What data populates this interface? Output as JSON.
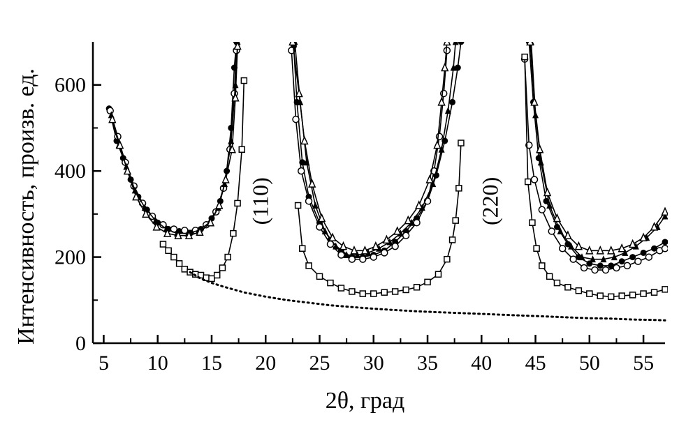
{
  "chart_data": {
    "type": "scatter",
    "title": "",
    "xlabel": "2θ, град",
    "ylabel": "Интенсивность, произв. ед.",
    "xlim": [
      4,
      57
    ],
    "ylim": [
      0,
      700
    ],
    "xticks": [
      "5",
      "10",
      "15",
      "20",
      "25",
      "30",
      "35",
      "40",
      "45",
      "50",
      "55"
    ],
    "yticks": [
      "0",
      "200",
      "400",
      "600"
    ],
    "grid": false,
    "annotations": [
      {
        "text": "(110)",
        "x": 20.2,
        "y": 330
      },
      {
        "text": "(220)",
        "x": 41.5,
        "y": 330
      }
    ],
    "series": [
      {
        "marker": "filled-circle",
        "points": [
          [
            5.5,
            545
          ],
          [
            6.2,
            470
          ],
          [
            6.8,
            430
          ],
          [
            7.5,
            380
          ],
          [
            8.2,
            340
          ],
          [
            9.0,
            310
          ],
          [
            10.0,
            280
          ],
          [
            11.0,
            265
          ],
          [
            12.0,
            260
          ],
          [
            13.0,
            255
          ],
          [
            14.0,
            265
          ],
          [
            15.0,
            290
          ],
          [
            15.8,
            330
          ],
          [
            16.4,
            400
          ],
          [
            16.8,
            500
          ],
          [
            17.1,
            640
          ],
          [
            17.3,
            700
          ],
          [
            22.6,
            690
          ],
          [
            22.9,
            560
          ],
          [
            23.4,
            420
          ],
          [
            24.0,
            340
          ],
          [
            25.0,
            280
          ],
          [
            26.0,
            240
          ],
          [
            27.0,
            215
          ],
          [
            28.0,
            200
          ],
          [
            29.0,
            200
          ],
          [
            30.0,
            205
          ],
          [
            31.0,
            215
          ],
          [
            32.0,
            235
          ],
          [
            33.0,
            260
          ],
          [
            34.0,
            290
          ],
          [
            35.0,
            330
          ],
          [
            35.8,
            390
          ],
          [
            36.6,
            470
          ],
          [
            37.3,
            560
          ],
          [
            37.8,
            640
          ],
          [
            38.1,
            700
          ],
          [
            44.4,
            700
          ],
          [
            44.8,
            560
          ],
          [
            45.3,
            430
          ],
          [
            46.0,
            330
          ],
          [
            47.0,
            270
          ],
          [
            48.0,
            230
          ],
          [
            49.0,
            200
          ],
          [
            50.0,
            185
          ],
          [
            51.0,
            180
          ],
          [
            52.0,
            180
          ],
          [
            53.0,
            190
          ],
          [
            54.0,
            200
          ],
          [
            55.0,
            210
          ],
          [
            56.0,
            220
          ],
          [
            57.0,
            235
          ]
        ]
      },
      {
        "marker": "open-circle",
        "points": [
          [
            5.6,
            540
          ],
          [
            6.3,
            480
          ],
          [
            7.0,
            420
          ],
          [
            7.8,
            365
          ],
          [
            8.6,
            325
          ],
          [
            9.5,
            295
          ],
          [
            10.5,
            275
          ],
          [
            11.5,
            265
          ],
          [
            12.5,
            262
          ],
          [
            13.5,
            262
          ],
          [
            14.5,
            275
          ],
          [
            15.4,
            305
          ],
          [
            16.1,
            360
          ],
          [
            16.7,
            450
          ],
          [
            17.1,
            580
          ],
          [
            17.3,
            680
          ],
          [
            22.4,
            680
          ],
          [
            22.8,
            520
          ],
          [
            23.3,
            400
          ],
          [
            24.0,
            330
          ],
          [
            25.0,
            270
          ],
          [
            26.0,
            230
          ],
          [
            27.0,
            205
          ],
          [
            28.0,
            195
          ],
          [
            29.0,
            195
          ],
          [
            30.0,
            200
          ],
          [
            31.0,
            210
          ],
          [
            32.0,
            225
          ],
          [
            33.0,
            250
          ],
          [
            34.0,
            280
          ],
          [
            35.0,
            330
          ],
          [
            35.6,
            400
          ],
          [
            36.1,
            480
          ],
          [
            36.5,
            580
          ],
          [
            36.8,
            680
          ],
          [
            44.0,
            660
          ],
          [
            44.4,
            460
          ],
          [
            44.9,
            380
          ],
          [
            45.6,
            310
          ],
          [
            46.5,
            260
          ],
          [
            47.5,
            220
          ],
          [
            48.5,
            195
          ],
          [
            49.5,
            175
          ],
          [
            50.5,
            170
          ],
          [
            51.5,
            170
          ],
          [
            52.5,
            175
          ],
          [
            53.5,
            180
          ],
          [
            54.5,
            190
          ],
          [
            55.5,
            200
          ],
          [
            56.5,
            215
          ],
          [
            57.0,
            220
          ]
        ]
      },
      {
        "marker": "filled-triangle",
        "points": [
          [
            5.7,
            530
          ],
          [
            6.4,
            460
          ],
          [
            7.1,
            410
          ],
          [
            7.9,
            355
          ],
          [
            8.8,
            315
          ],
          [
            9.8,
            285
          ],
          [
            10.8,
            265
          ],
          [
            11.8,
            255
          ],
          [
            12.8,
            255
          ],
          [
            13.8,
            262
          ],
          [
            14.8,
            280
          ],
          [
            15.6,
            315
          ],
          [
            16.2,
            370
          ],
          [
            16.8,
            470
          ],
          [
            17.2,
            600
          ],
          [
            17.4,
            700
          ],
          [
            22.7,
            700
          ],
          [
            23.2,
            560
          ],
          [
            23.8,
            420
          ],
          [
            24.6,
            320
          ],
          [
            25.5,
            260
          ],
          [
            26.5,
            225
          ],
          [
            27.5,
            205
          ],
          [
            28.5,
            205
          ],
          [
            29.5,
            210
          ],
          [
            30.5,
            220
          ],
          [
            31.5,
            235
          ],
          [
            32.5,
            255
          ],
          [
            33.5,
            280
          ],
          [
            34.5,
            315
          ],
          [
            35.5,
            370
          ],
          [
            36.3,
            450
          ],
          [
            36.9,
            540
          ],
          [
            37.4,
            640
          ],
          [
            37.6,
            700
          ],
          [
            44.6,
            700
          ],
          [
            45.0,
            530
          ],
          [
            45.5,
            420
          ],
          [
            46.3,
            320
          ],
          [
            47.3,
            260
          ],
          [
            48.3,
            225
          ],
          [
            49.3,
            200
          ],
          [
            50.3,
            195
          ],
          [
            51.3,
            195
          ],
          [
            52.3,
            200
          ],
          [
            53.3,
            210
          ],
          [
            54.3,
            225
          ],
          [
            55.3,
            245
          ],
          [
            56.3,
            270
          ],
          [
            57.0,
            295
          ]
        ]
      },
      {
        "marker": "open-triangle",
        "points": [
          [
            5.8,
            520
          ],
          [
            6.5,
            460
          ],
          [
            7.2,
            400
          ],
          [
            8.0,
            340
          ],
          [
            8.9,
            300
          ],
          [
            9.9,
            270
          ],
          [
            10.9,
            255
          ],
          [
            11.9,
            250
          ],
          [
            12.9,
            250
          ],
          [
            13.9,
            258
          ],
          [
            14.9,
            280
          ],
          [
            15.7,
            320
          ],
          [
            16.3,
            380
          ],
          [
            16.9,
            450
          ],
          [
            17.2,
            570
          ],
          [
            17.4,
            690
          ],
          [
            22.5,
            700
          ],
          [
            23.1,
            580
          ],
          [
            23.6,
            470
          ],
          [
            24.3,
            370
          ],
          [
            25.2,
            290
          ],
          [
            26.2,
            245
          ],
          [
            27.2,
            225
          ],
          [
            28.2,
            215
          ],
          [
            29.2,
            215
          ],
          [
            30.2,
            225
          ],
          [
            31.2,
            240
          ],
          [
            32.2,
            260
          ],
          [
            33.2,
            285
          ],
          [
            34.2,
            320
          ],
          [
            35.2,
            380
          ],
          [
            35.9,
            460
          ],
          [
            36.3,
            560
          ],
          [
            36.6,
            640
          ],
          [
            36.8,
            700
          ],
          [
            44.5,
            700
          ],
          [
            44.9,
            560
          ],
          [
            45.4,
            450
          ],
          [
            46.1,
            350
          ],
          [
            47.0,
            290
          ],
          [
            48.0,
            250
          ],
          [
            49.0,
            225
          ],
          [
            50.0,
            215
          ],
          [
            51.0,
            215
          ],
          [
            52.0,
            215
          ],
          [
            53.0,
            220
          ],
          [
            54.0,
            230
          ],
          [
            55.0,
            245
          ],
          [
            56.0,
            270
          ],
          [
            57.0,
            305
          ]
        ]
      },
      {
        "marker": "open-square",
        "points": [
          [
            10.5,
            230
          ],
          [
            11.0,
            215
          ],
          [
            11.5,
            200
          ],
          [
            12.0,
            185
          ],
          [
            12.5,
            172
          ],
          [
            13.0,
            165
          ],
          [
            13.5,
            160
          ],
          [
            14.0,
            158
          ],
          [
            14.5,
            152
          ],
          [
            15.0,
            150
          ],
          [
            15.5,
            158
          ],
          [
            16.0,
            175
          ],
          [
            16.5,
            200
          ],
          [
            17.0,
            255
          ],
          [
            17.4,
            325
          ],
          [
            17.8,
            450
          ],
          [
            18.0,
            610
          ],
          [
            23.0,
            320
          ],
          [
            23.4,
            220
          ],
          [
            24.0,
            180
          ],
          [
            25.0,
            155
          ],
          [
            26.0,
            140
          ],
          [
            27.0,
            128
          ],
          [
            28.0,
            120
          ],
          [
            29.0,
            115
          ],
          [
            30.0,
            115
          ],
          [
            31.0,
            118
          ],
          [
            32.0,
            120
          ],
          [
            33.0,
            124
          ],
          [
            34.0,
            130
          ],
          [
            35.0,
            142
          ],
          [
            36.0,
            160
          ],
          [
            36.8,
            195
          ],
          [
            37.3,
            240
          ],
          [
            37.6,
            285
          ],
          [
            37.9,
            360
          ],
          [
            38.1,
            465
          ],
          [
            44.0,
            665
          ],
          [
            44.3,
            375
          ],
          [
            44.7,
            280
          ],
          [
            45.1,
            220
          ],
          [
            45.6,
            180
          ],
          [
            46.3,
            155
          ],
          [
            47.0,
            140
          ],
          [
            48.0,
            130
          ],
          [
            49.0,
            122
          ],
          [
            50.0,
            115
          ],
          [
            51.0,
            110
          ],
          [
            52.0,
            108
          ],
          [
            53.0,
            110
          ],
          [
            54.0,
            112
          ],
          [
            55.0,
            115
          ],
          [
            56.0,
            118
          ],
          [
            57.0,
            125
          ]
        ]
      },
      {
        "marker": "dotted-line",
        "points": [
          [
            13.0,
            165
          ],
          [
            14.0,
            150
          ],
          [
            15.0,
            140
          ],
          [
            16.0,
            132
          ],
          [
            17.0,
            125
          ],
          [
            18.0,
            118
          ],
          [
            20.0,
            108
          ],
          [
            22.0,
            100
          ],
          [
            24.0,
            94
          ],
          [
            26.0,
            88
          ],
          [
            28.0,
            84
          ],
          [
            30.0,
            80
          ],
          [
            32.0,
            77
          ],
          [
            34.0,
            74
          ],
          [
            36.0,
            72
          ],
          [
            38.0,
            70
          ],
          [
            40.0,
            68
          ],
          [
            42.0,
            66
          ],
          [
            44.0,
            64
          ],
          [
            46.0,
            62
          ],
          [
            48.0,
            60
          ],
          [
            50.0,
            58
          ],
          [
            52.0,
            57
          ],
          [
            54.0,
            55
          ],
          [
            56.0,
            54
          ],
          [
            57.0,
            53
          ]
        ]
      }
    ]
  }
}
